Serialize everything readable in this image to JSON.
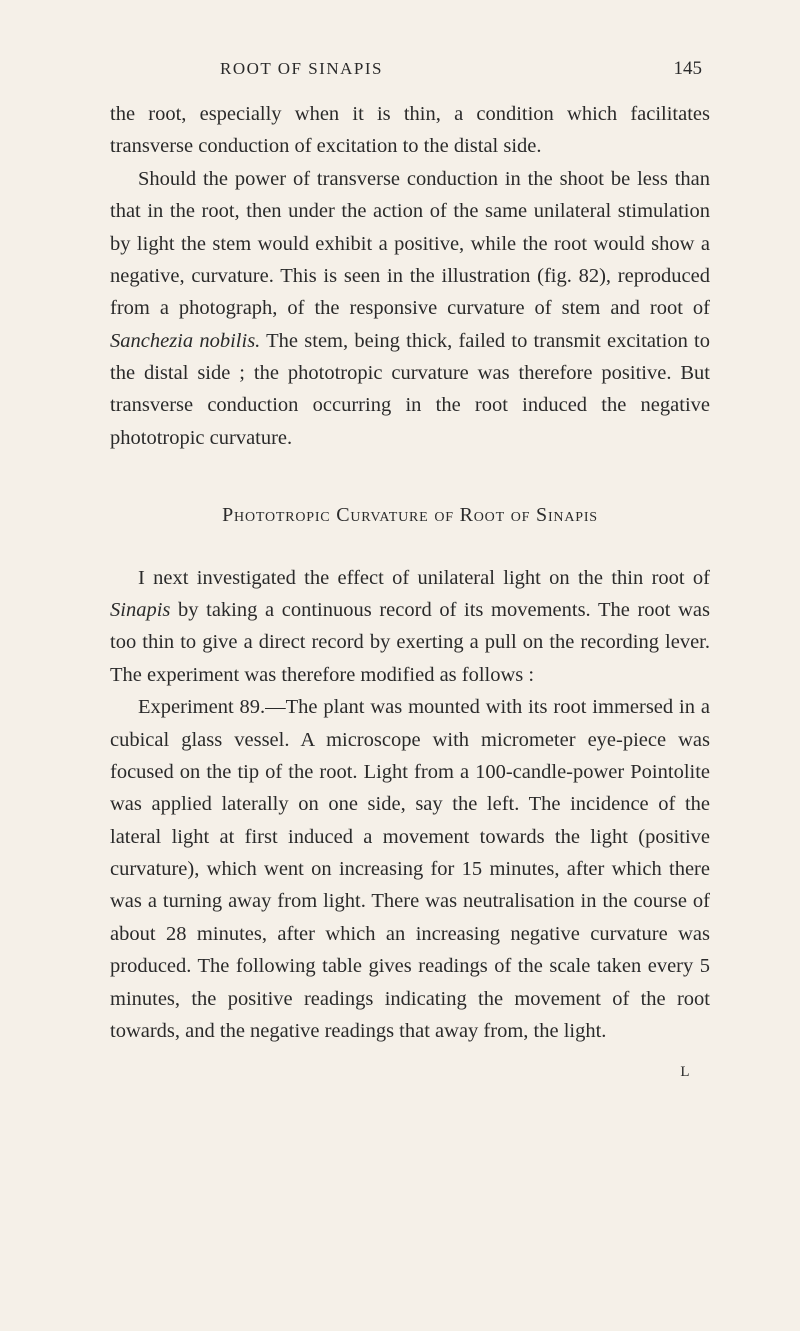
{
  "header": {
    "running_head": "ROOT OF SINAPIS",
    "page_number": "145"
  },
  "paragraphs": {
    "p1": "the root, especially when it is thin, a condition which facilitates transverse conduction of excitation to the distal side.",
    "p2_pre": "Should the power of transverse conduction in the shoot be less than that in the root, then under the action of the same unilateral stimulation by light the stem would exhibit a positive, while the root would show a negative, curvature. This is seen in the illustration (fig. 82), reproduced from a photograph, of the responsive curvature of stem and root of ",
    "p2_italic": "Sanchezia nobilis.",
    "p2_post": " The stem, being thick, failed to transmit excitation to the distal side ; the phototropic curvature was therefore positive. But transverse conduc­tion occurring in the root induced the negative phototropic curvature."
  },
  "section_heading": "Phototropic Curvature of Root of Sinapis",
  "section_paragraphs": {
    "sp1_pre": "I next investigated the effect of unilateral light on the thin root of ",
    "sp1_italic": "Sinapis",
    "sp1_post": " by taking a continuous record of its movements. The root was too thin to give a direct record by exerting a pull on the recording lever. The experiment was therefore modified as follows :",
    "sp2": "Experiment 89.—The plant was mounted with its root immersed in a cubical glass vessel. A microscope with micrometer eye-piece was focused on the tip of the root. Light from a 100-candle-power Pointolite was applied laterally on one side, say the left. The incidence of the lateral light at first induced a movement towards the light (positive curvature), which went on increasing for 15 minutes, after which there was a turning away from light. There was neutralisation in the course of about 28 minutes, after which an increasing negative curvature was produced. The following table gives readings of the scale taken every 5 minutes, the positive readings indicating the movement of the root towards, and the negative readings that away from, the light."
  },
  "foot_mark": "L"
}
